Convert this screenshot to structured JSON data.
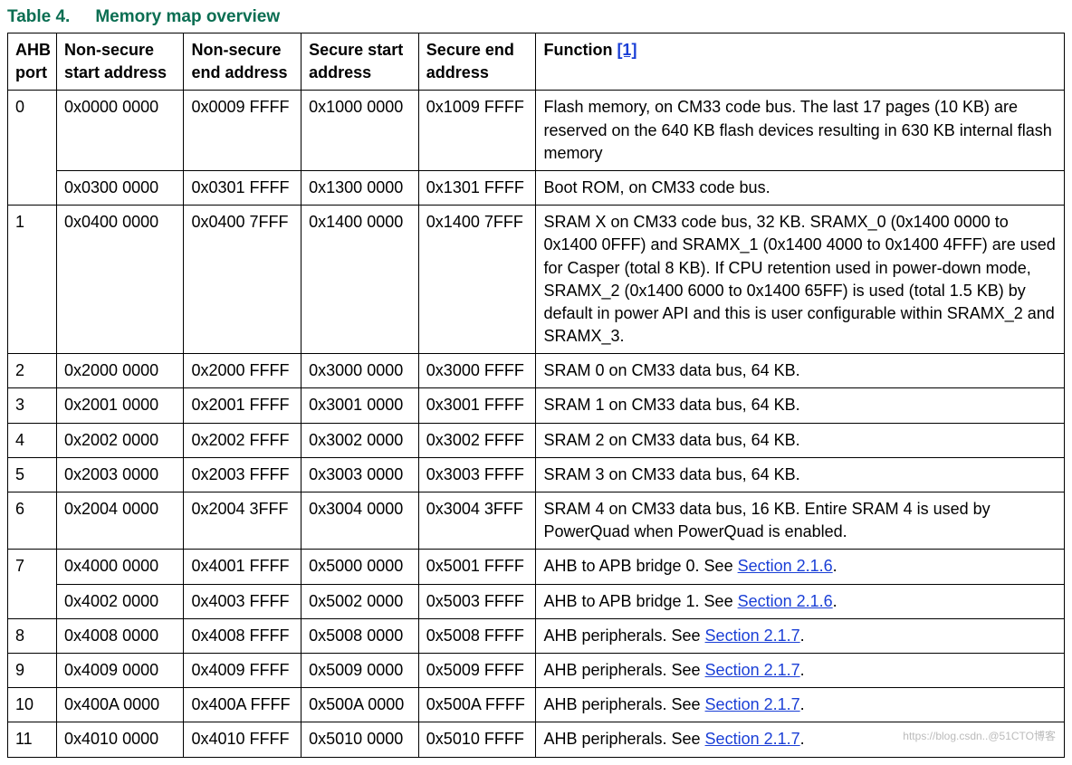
{
  "title_prefix": "Table 4.",
  "title_text": "Memory map overview",
  "footnote_ref": "[1]",
  "columns": {
    "ahb": "AHB port",
    "nss": "Non-secure start address",
    "nse": "Non-secure end address",
    "ss": "Secure start address",
    "se": "Secure end address",
    "fn": "Function "
  },
  "links": {
    "s216": "Section 2.1.6",
    "s217": "Section 2.1.7"
  },
  "rows": [
    {
      "ahb": "0",
      "ahb_rowspan": true,
      "nss": "0x0000 0000",
      "nse": "0x0009 FFFF",
      "ss": "0x1000 0000",
      "se": "0x1009 FFFF",
      "fn": "Flash memory, on CM33 code bus. The last 17 pages (10 KB) are reserved on the 640 KB flash devices resulting in 630 KB internal flash memory"
    },
    {
      "ahb": null,
      "nss": "0x0300 0000",
      "nse": "0x0301 FFFF",
      "ss": "0x1300 0000",
      "se": "0x1301 FFFF",
      "fn": "Boot ROM, on CM33 code bus."
    },
    {
      "ahb": "1",
      "nss": "0x0400 0000",
      "nse": "0x0400 7FFF",
      "ss": "0x1400 0000",
      "se": "0x1400 7FFF",
      "fn": "SRAM X on CM33 code bus, 32 KB. SRAMX_0 (0x1400 0000 to 0x1400 0FFF) and SRAMX_1 (0x1400 4000 to 0x1400 4FFF) are used for Casper (total 8 KB). If CPU retention used in power-down mode, SRAMX_2 (0x1400 6000 to 0x1400 65FF) is used (total 1.5 KB) by default in power API and this is user configurable within SRAMX_2 and SRAMX_3."
    },
    {
      "ahb": "2",
      "nss": "0x2000 0000",
      "nse": "0x2000 FFFF",
      "ss": "0x3000 0000",
      "se": "0x3000 FFFF",
      "fn": "SRAM 0 on CM33 data bus, 64 KB."
    },
    {
      "ahb": "3",
      "nss": "0x2001 0000",
      "nse": "0x2001 FFFF",
      "ss": "0x3001 0000",
      "se": "0x3001 FFFF",
      "fn": "SRAM 1 on CM33 data bus, 64 KB."
    },
    {
      "ahb": "4",
      "nss": "0x2002 0000",
      "nse": "0x2002 FFFF",
      "ss": "0x3002 0000",
      "se": "0x3002 FFFF",
      "fn": "SRAM 2 on CM33 data bus, 64 KB."
    },
    {
      "ahb": "5",
      "nss": "0x2003 0000",
      "nse": "0x2003 FFFF",
      "ss": "0x3003 0000",
      "se": "0x3003 FFFF",
      "fn": "SRAM 3 on CM33 data bus, 64 KB."
    },
    {
      "ahb": "6",
      "nss": "0x2004 0000",
      "nse": "0x2004 3FFF",
      "ss": "0x3004 0000",
      "se": "0x3004 3FFF",
      "fn": "SRAM 4 on CM33 data bus, 16 KB. Entire SRAM 4 is used by PowerQuad when PowerQuad is enabled."
    },
    {
      "ahb": "7",
      "ahb_rowspan": true,
      "nss": "0x4000 0000",
      "nse": "0x4001 FFFF",
      "ss": "0x5000 0000",
      "se": "0x5001 FFFF",
      "fn_pre": "AHB to APB bridge 0. See ",
      "fn_link": "s216",
      "fn_post": "."
    },
    {
      "ahb": null,
      "nss": "0x4002 0000",
      "nse": "0x4003 FFFF",
      "ss": "0x5002 0000",
      "se": "0x5003 FFFF",
      "fn_pre": "AHB to APB bridge 1. See ",
      "fn_link": "s216",
      "fn_post": "."
    },
    {
      "ahb": "8",
      "nss": "0x4008 0000",
      "nse": "0x4008 FFFF",
      "ss": "0x5008 0000",
      "se": "0x5008 FFFF",
      "fn_pre": "AHB peripherals. See ",
      "fn_link": "s217",
      "fn_post": "."
    },
    {
      "ahb": "9",
      "nss": "0x4009 0000",
      "nse": "0x4009 FFFF",
      "ss": "0x5009 0000",
      "se": "0x5009 FFFF",
      "fn_pre": "AHB peripherals. See ",
      "fn_link": "s217",
      "fn_post": "."
    },
    {
      "ahb": "10",
      "nss": "0x400A 0000",
      "nse": "0x400A FFFF",
      "ss": "0x500A 0000",
      "se": "0x500A FFFF",
      "fn_pre": "AHB peripherals. See ",
      "fn_link": "s217",
      "fn_post": "."
    },
    {
      "ahb": "11",
      "nss": "0x4010 0000",
      "nse": "0x4010 FFFF",
      "ss": "0x5010 0000",
      "se": "0x5010 FFFF",
      "fn_pre": "AHB peripherals. See ",
      "fn_link": "s217",
      "fn_post": "."
    }
  ],
  "watermark": "https://blog.csdn..@51CTO博客"
}
